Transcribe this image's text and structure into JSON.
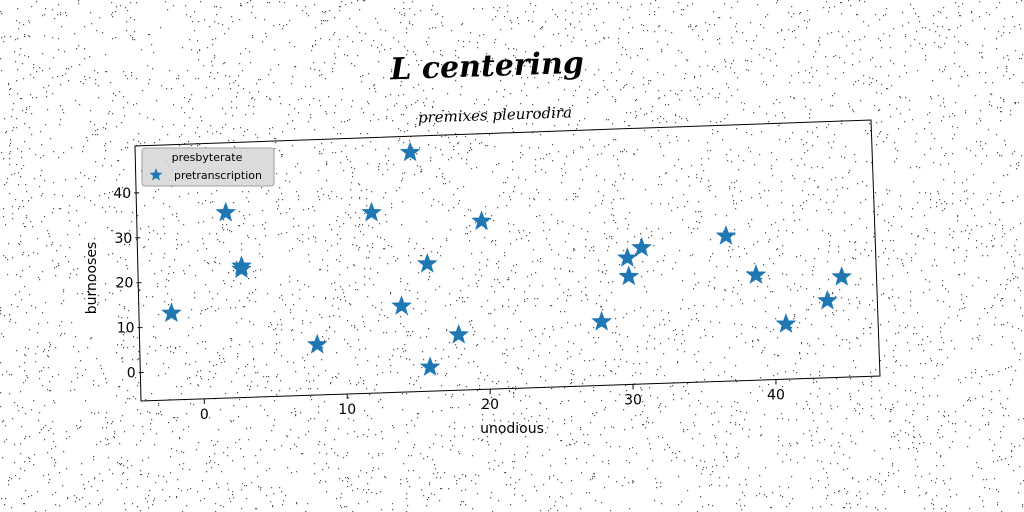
{
  "chart_data": {
    "type": "scatter",
    "title": "L centering",
    "subtitle": "premixes pleurodira",
    "xlabel": "unodious",
    "ylabel": "burnooses",
    "xlim": [
      -4.5,
      47
    ],
    "ylim": [
      -3,
      50
    ],
    "xticks": [
      0,
      10,
      20,
      30,
      40
    ],
    "yticks": [
      0,
      10,
      20,
      30,
      40
    ],
    "grid": false,
    "legend": {
      "title": "presbyterate",
      "placement": "top-left"
    },
    "series": [
      {
        "name": "pretranscription",
        "marker": "star",
        "color": "#1f77b4",
        "points": [
          {
            "x": -2.3,
            "y": 13.2
          },
          {
            "x": 1.5,
            "y": 35.6
          },
          {
            "x": 2.6,
            "y": 23.0
          },
          {
            "x": 2.6,
            "y": 23.7
          },
          {
            "x": 7.9,
            "y": 6.2
          },
          {
            "x": 11.7,
            "y": 35.6
          },
          {
            "x": 13.8,
            "y": 14.8
          },
          {
            "x": 14.4,
            "y": 49.0
          },
          {
            "x": 15.6,
            "y": 24.2
          },
          {
            "x": 15.8,
            "y": 1.2
          },
          {
            "x": 17.8,
            "y": 8.4
          },
          {
            "x": 19.4,
            "y": 33.7
          },
          {
            "x": 27.8,
            "y": 11.3
          },
          {
            "x": 29.6,
            "y": 25.5
          },
          {
            "x": 29.7,
            "y": 21.4
          },
          {
            "x": 30.6,
            "y": 27.8
          },
          {
            "x": 36.5,
            "y": 30.4
          },
          {
            "x": 38.6,
            "y": 21.7
          },
          {
            "x": 40.7,
            "y": 10.8
          },
          {
            "x": 43.6,
            "y": 16.0
          },
          {
            "x": 44.6,
            "y": 21.3
          }
        ]
      }
    ]
  }
}
